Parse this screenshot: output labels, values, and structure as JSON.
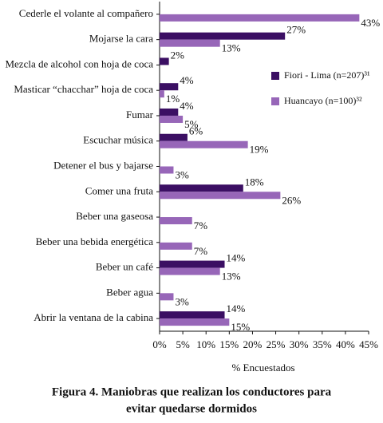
{
  "chart_data": {
    "type": "hbar",
    "categories": [
      "Cederle el volante al compañero",
      "Mojarse la cara",
      "Mezcla de alcohol con hoja de coca",
      "Masticar “chacchar” hoja de coca",
      "Fumar",
      "Escuchar música",
      "Detener el bus y bajarse",
      "Comer una fruta",
      "Beber una gaseosa",
      "Beber una bebida energética",
      "Beber un café",
      "Beber agua",
      "Abrir la ventana de la cabina"
    ],
    "series": [
      {
        "name": "Fiori - Lima (n=207)³¹",
        "color": "#3b0f63",
        "values": [
          null,
          27,
          2,
          4,
          4,
          6,
          null,
          18,
          null,
          null,
          14,
          null,
          14
        ],
        "value_labels": [
          null,
          "27%",
          "2%",
          "4%",
          "4%",
          "6%",
          null,
          "18%",
          null,
          null,
          "14%",
          null,
          "14%"
        ]
      },
      {
        "name": "Huancayo (n=100)³²",
        "color": "#9766b8",
        "values": [
          43,
          13,
          null,
          1,
          5,
          19,
          3,
          26,
          7,
          7,
          13,
          3,
          15
        ],
        "value_labels": [
          "43%",
          "13%",
          null,
          "1%",
          "5%",
          "19%",
          "3%",
          "26%",
          "7%",
          "7%",
          "13%",
          "3%",
          "15%"
        ]
      }
    ],
    "xlim": [
      0,
      45
    ],
    "xticks": [
      {
        "value": 0,
        "label": "0%"
      },
      {
        "value": 5,
        "label": "5%"
      },
      {
        "value": 10,
        "label": "10%"
      },
      {
        "value": 15,
        "label": "15%"
      },
      {
        "value": 20,
        "label": "20%"
      },
      {
        "value": 25,
        "label": "25%"
      },
      {
        "value": 30,
        "label": "30%"
      },
      {
        "value": 35,
        "label": "35%"
      },
      {
        "value": 40,
        "label": "40%"
      },
      {
        "value": 45,
        "label": "45%"
      }
    ],
    "x_label": "% Encuestados",
    "legend": "right",
    "caption": [
      "Figura 4. Maniobras que realizan los conductores para",
      "evitar quedarse dormidos"
    ]
  }
}
